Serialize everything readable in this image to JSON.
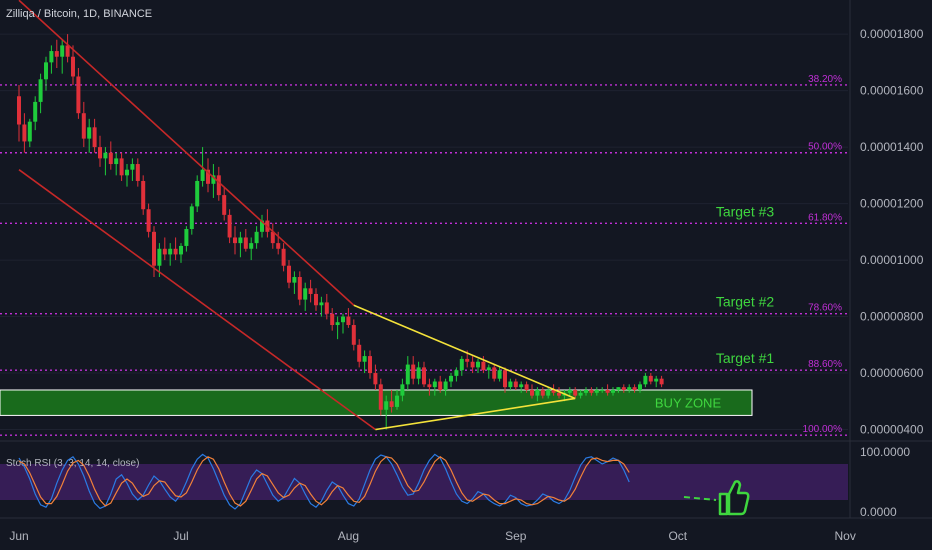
{
  "header": {
    "title": "Zilliqa / Bitcoin, 1D, BINANCE"
  },
  "colors": {
    "background": "#131722",
    "up": "#26a69a",
    "up_fill": "#1fcc3c",
    "down": "#e0303a",
    "channel": "#c62828",
    "triangle": "#f4e23a",
    "fib": "#c02fd6",
    "target_text": "#3fd63f",
    "buy_zone_fill": "#1b7a1b",
    "buy_zone_border": "#ffffff",
    "stoch_k": "#2b7be4",
    "stoch_d": "#f2813a",
    "stoch_band": "#3b1e5c",
    "axis_text": "#b2b5be"
  },
  "chart_data": [
    {
      "type": "candlestick",
      "title": "Zilliqa / Bitcoin, 1D, BINANCE",
      "x_ticks": [
        "Jun",
        "Jul",
        "Aug",
        "Sep",
        "Oct",
        "Nov"
      ],
      "y_ticks": [
        "0.00000400",
        "0.00000600",
        "0.00000800",
        "0.00001000",
        "0.00001200",
        "0.00001400",
        "0.00001600",
        "0.00001800"
      ],
      "ylim": [
        3.7e-06,
        1.85e-05
      ],
      "fib_levels": [
        {
          "label": "38.20%",
          "value": 1.62e-05
        },
        {
          "label": "50.00%",
          "value": 1.38e-05
        },
        {
          "label": "61.80%",
          "value": 1.13e-05
        },
        {
          "label": "78.60%",
          "value": 8.1e-06
        },
        {
          "label": "88.60%",
          "value": 6.1e-06
        },
        {
          "label": "100.00%",
          "value": 3.8e-06
        }
      ],
      "targets": [
        {
          "label": "Target #3",
          "value": 1.13e-05
        },
        {
          "label": "Target #2",
          "value": 8.1e-06
        },
        {
          "label": "Target #1",
          "value": 6.1e-06
        }
      ],
      "buy_zone": {
        "label": "BUY ZONE",
        "low": 4.5e-06,
        "high": 5.4e-06
      },
      "days": 140,
      "month_starts": {
        "Jun": 0,
        "Jul": 30,
        "Aug": 61,
        "Sep": 92,
        "Oct": 122,
        "Nov": 153
      },
      "candles": [
        [
          1.58e-05,
          1.62e-05,
          1.42e-05,
          1.48e-05
        ],
        [
          1.48e-05,
          1.52e-05,
          1.38e-05,
          1.42e-05
        ],
        [
          1.42e-05,
          1.5e-05,
          1.4e-05,
          1.49e-05
        ],
        [
          1.49e-05,
          1.58e-05,
          1.46e-05,
          1.56e-05
        ],
        [
          1.56e-05,
          1.66e-05,
          1.52e-05,
          1.64e-05
        ],
        [
          1.64e-05,
          1.72e-05,
          1.6e-05,
          1.7e-05
        ],
        [
          1.7e-05,
          1.76e-05,
          1.66e-05,
          1.74e-05
        ],
        [
          1.74e-05,
          1.78e-05,
          1.68e-05,
          1.72e-05
        ],
        [
          1.72e-05,
          1.78e-05,
          1.66e-05,
          1.76e-05
        ],
        [
          1.76e-05,
          1.8e-05,
          1.7e-05,
          1.72e-05
        ],
        [
          1.72e-05,
          1.76e-05,
          1.62e-05,
          1.65e-05
        ],
        [
          1.65e-05,
          1.68e-05,
          1.5e-05,
          1.52e-05
        ],
        [
          1.52e-05,
          1.56e-05,
          1.4e-05,
          1.43e-05
        ],
        [
          1.43e-05,
          1.5e-05,
          1.38e-05,
          1.47e-05
        ],
        [
          1.47e-05,
          1.5e-05,
          1.38e-05,
          1.4e-05
        ],
        [
          1.4e-05,
          1.44e-05,
          1.33e-05,
          1.36e-05
        ],
        [
          1.36e-05,
          1.4e-05,
          1.3e-05,
          1.38e-05
        ],
        [
          1.38e-05,
          1.42e-05,
          1.32e-05,
          1.34e-05
        ],
        [
          1.34e-05,
          1.38e-05,
          1.3e-05,
          1.36e-05
        ],
        [
          1.36e-05,
          1.38e-05,
          1.28e-05,
          1.3e-05
        ],
        [
          1.3e-05,
          1.34e-05,
          1.26e-05,
          1.32e-05
        ],
        [
          1.32e-05,
          1.36e-05,
          1.28e-05,
          1.34e-05
        ],
        [
          1.34e-05,
          1.36e-05,
          1.26e-05,
          1.28e-05
        ],
        [
          1.28e-05,
          1.3e-05,
          1.16e-05,
          1.18e-05
        ],
        [
          1.18e-05,
          1.2e-05,
          1.08e-05,
          1.1e-05
        ],
        [
          1.1e-05,
          1.12e-05,
          9.4e-06,
          9.8e-06
        ],
        [
          9.8e-06,
          1.06e-05,
          9.4e-06,
          1.04e-05
        ],
        [
          1.04e-05,
          1.08e-05,
          1e-05,
          1.02e-05
        ],
        [
          1.02e-05,
          1.06e-05,
          9.8e-06,
          1.04e-05
        ],
        [
          1.04e-05,
          1.08e-05,
          1e-05,
          1.02e-05
        ],
        [
          1.02e-05,
          1.06e-05,
          9.9e-06,
          1.05e-05
        ],
        [
          1.05e-05,
          1.12e-05,
          1.03e-05,
          1.11e-05
        ],
        [
          1.11e-05,
          1.2e-05,
          1.09e-05,
          1.19e-05
        ],
        [
          1.19e-05,
          1.3e-05,
          1.17e-05,
          1.28e-05
        ],
        [
          1.28e-05,
          1.4e-05,
          1.26e-05,
          1.32e-05
        ],
        [
          1.32e-05,
          1.36e-05,
          1.24e-05,
          1.27e-05
        ],
        [
          1.27e-05,
          1.34e-05,
          1.22e-05,
          1.3e-05
        ],
        [
          1.3e-05,
          1.33e-05,
          1.21e-05,
          1.23e-05
        ],
        [
          1.23e-05,
          1.26e-05,
          1.14e-05,
          1.16e-05
        ],
        [
          1.16e-05,
          1.18e-05,
          1.06e-05,
          1.08e-05
        ],
        [
          1.08e-05,
          1.12e-05,
          1.02e-05,
          1.06e-05
        ],
        [
          1.06e-05,
          1.1e-05,
          1.01e-05,
          1.08e-05
        ],
        [
          1.08e-05,
          1.11e-05,
          1.03e-05,
          1.04e-05
        ],
        [
          1.04e-05,
          1.08e-05,
          1e-05,
          1.06e-05
        ],
        [
          1.06e-05,
          1.12e-05,
          1.04e-05,
          1.1e-05
        ],
        [
          1.1e-05,
          1.16e-05,
          1.08e-05,
          1.14e-05
        ],
        [
          1.14e-05,
          1.18e-05,
          1.08e-05,
          1.1e-05
        ],
        [
          1.1e-05,
          1.13e-05,
          1.04e-05,
          1.06e-05
        ],
        [
          1.06e-05,
          1.1e-05,
          1.02e-05,
          1.04e-05
        ],
        [
          1.04e-05,
          1.06e-05,
          9.6e-06,
          9.8e-06
        ],
        [
          9.8e-06,
          1e-05,
          9e-06,
          9.2e-06
        ],
        [
          9.2e-06,
          9.6e-06,
          8.8e-06,
          9.4e-06
        ],
        [
          9.4e-06,
          9.6e-06,
          8.4e-06,
          8.6e-06
        ],
        [
          8.6e-06,
          9.2e-06,
          8.2e-06,
          9e-06
        ],
        [
          9e-06,
          9.3e-06,
          8.5e-06,
          8.8e-06
        ],
        [
          8.8e-06,
          9e-06,
          8.2e-06,
          8.4e-06
        ],
        [
          8.4e-06,
          8.7e-06,
          8e-06,
          8.5e-06
        ],
        [
          8.5e-06,
          8.8e-06,
          7.9e-06,
          8.1e-06
        ],
        [
          8.1e-06,
          8.3e-06,
          7.5e-06,
          7.7e-06
        ],
        [
          7.7e-06,
          8e-06,
          7.2e-06,
          7.8e-06
        ],
        [
          7.8e-06,
          8.1e-06,
          7.4e-06,
          8e-06
        ],
        [
          8e-06,
          8.3e-06,
          7.6e-06,
          7.7e-06
        ],
        [
          7.7e-06,
          7.9e-06,
          6.8e-06,
          7e-06
        ],
        [
          7e-06,
          7.2e-06,
          6.2e-06,
          6.4e-06
        ],
        [
          6.4e-06,
          6.8e-06,
          6e-06,
          6.6e-06
        ],
        [
          6.6e-06,
          6.8e-06,
          5.8e-06,
          6e-06
        ],
        [
          6e-06,
          6.3e-06,
          5.4e-06,
          5.6e-06
        ],
        [
          5.6e-06,
          5.8e-06,
          4.5e-06,
          4.7e-06
        ],
        [
          4.7e-06,
          5.2e-06,
          4e-06,
          5e-06
        ],
        [
          5e-06,
          5.4e-06,
          4.6e-06,
          4.8e-06
        ],
        [
          4.8e-06,
          5.4e-06,
          4.7e-06,
          5.2e-06
        ],
        [
          5.2e-06,
          5.8e-06,
          5e-06,
          5.6e-06
        ],
        [
          5.6e-06,
          6.6e-06,
          5.4e-06,
          6.3e-06
        ],
        [
          6.3e-06,
          6.6e-06,
          5.6e-06,
          5.8e-06
        ],
        [
          5.8e-06,
          6.4e-06,
          5.6e-06,
          6.2e-06
        ],
        [
          6.2e-06,
          6.4e-06,
          5.5e-06,
          5.6e-06
        ],
        [
          5.6e-06,
          5.8e-06,
          5.2e-06,
          5.5e-06
        ],
        [
          5.5e-06,
          5.8e-06,
          5.2e-06,
          5.7e-06
        ],
        [
          5.7e-06,
          5.9e-06,
          5.3e-06,
          5.4e-06
        ],
        [
          5.4e-06,
          5.8e-06,
          5.2e-06,
          5.7e-06
        ],
        [
          5.7e-06,
          6e-06,
          5.5e-06,
          5.9e-06
        ],
        [
          5.9e-06,
          6.2e-06,
          5.7e-06,
          6.1e-06
        ],
        [
          6.1e-06,
          6.6e-06,
          5.9e-06,
          6.5e-06
        ],
        [
          6.5e-06,
          6.8e-06,
          6.2e-06,
          6.4e-06
        ],
        [
          6.4e-06,
          6.6e-06,
          6e-06,
          6.2e-06
        ],
        [
          6.2e-06,
          6.5e-06,
          6e-06,
          6.4e-06
        ],
        [
          6.4e-06,
          6.6e-06,
          6e-06,
          6.1e-06
        ],
        [
          6.1e-06,
          6.3e-06,
          5.8e-06,
          6.2e-06
        ],
        [
          6.2e-06,
          6.3e-06,
          5.7e-06,
          5.8e-06
        ],
        [
          5.8e-06,
          6.2e-06,
          5.7e-06,
          6.1e-06
        ],
        [
          6.1e-06,
          6.2e-06,
          5.3e-06,
          5.5e-06
        ],
        [
          5.5e-06,
          5.8e-06,
          5.4e-06,
          5.7e-06
        ],
        [
          5.7e-06,
          5.8e-06,
          5.4e-06,
          5.5e-06
        ],
        [
          5.5e-06,
          5.7e-06,
          5.3e-06,
          5.6e-06
        ],
        [
          5.6e-06,
          5.7e-06,
          5.3e-06,
          5.4e-06
        ],
        [
          5.4e-06,
          5.6e-06,
          5.1e-06,
          5.2e-06
        ],
        [
          5.2e-06,
          5.5e-06,
          5e-06,
          5.4e-06
        ],
        [
          5.4e-06,
          5.5e-06,
          5.1e-06,
          5.2e-06
        ],
        [
          5.2e-06,
          5.5e-06,
          5.1e-06,
          5.4e-06
        ],
        [
          5.4e-06,
          5.6e-06,
          5.2e-06,
          5.3e-06
        ],
        [
          5.3e-06,
          5.5e-06,
          5.1e-06,
          5.2e-06
        ],
        [
          5.2e-06,
          5.4e-06,
          5e-06,
          5.3e-06
        ],
        [
          5.3e-06,
          5.5e-06,
          5.2e-06,
          5.4e-06
        ],
        [
          5.4e-06,
          5.5e-06,
          5.1e-06,
          5.2e-06
        ],
        [
          5.2e-06,
          5.4e-06,
          5.1e-06,
          5.3e-06
        ],
        [
          5.3e-06,
          5.5e-06,
          5.2e-06,
          5.4e-06
        ],
        [
          5.4e-06,
          5.5e-06,
          5.2e-06,
          5.3e-06
        ],
        [
          5.3e-06,
          5.5e-06,
          5.2e-06,
          5.4e-06
        ],
        [
          5.4e-06,
          5.5e-06,
          5.3e-06,
          5.4e-06
        ],
        [
          5.4e-06,
          5.6e-06,
          5.2e-06,
          5.3e-06
        ],
        [
          5.3e-06,
          5.5e-06,
          5.2e-06,
          5.4e-06
        ],
        [
          5.4e-06,
          5.5e-06,
          5.3e-06,
          5.5e-06
        ],
        [
          5.5e-06,
          5.6e-06,
          5.3e-06,
          5.4e-06
        ],
        [
          5.4e-06,
          5.6e-06,
          5.3e-06,
          5.5e-06
        ],
        [
          5.5e-06,
          5.6e-06,
          5.3e-06,
          5.4e-06
        ],
        [
          5.4e-06,
          5.7e-06,
          5.3e-06,
          5.6e-06
        ],
        [
          5.6e-06,
          6e-06,
          5.5e-06,
          5.9e-06
        ],
        [
          5.9e-06,
          6e-06,
          5.6e-06,
          5.7e-06
        ],
        [
          5.7e-06,
          5.9e-06,
          5.5e-06,
          5.8e-06
        ],
        [
          5.8e-06,
          5.9e-06,
          5.5e-06,
          5.6e-06
        ]
      ],
      "trendlines": {
        "channel_upper": [
          [
            0,
            1.92e-05
          ],
          [
            62,
            8.4e-06
          ]
        ],
        "channel_lower": [
          [
            0,
            1.32e-05
          ],
          [
            66,
            4e-06
          ]
        ],
        "triangle_upper": [
          [
            62,
            8.4e-06
          ],
          [
            103,
            5.1e-06
          ]
        ],
        "triangle_lower": [
          [
            66,
            4e-06
          ],
          [
            103,
            5.1e-06
          ]
        ]
      }
    },
    {
      "type": "line",
      "title": "Stoch RSI (3, 3, 14, 14, close)",
      "y_ticks": [
        "100.0000",
        "0.0000"
      ],
      "ylim": [
        0,
        100
      ],
      "band": [
        20,
        80
      ],
      "series": [
        {
          "name": "K",
          "values": [
            90,
            75,
            55,
            30,
            12,
            8,
            22,
            48,
            70,
            86,
            92,
            80,
            60,
            35,
            15,
            6,
            10,
            30,
            55,
            62,
            48,
            30,
            20,
            28,
            45,
            60,
            52,
            38,
            25,
            18,
            30,
            50,
            72,
            88,
            96,
            90,
            72,
            50,
            28,
            12,
            5,
            14,
            36,
            58,
            70,
            64,
            46,
            28,
            18,
            24,
            40,
            56,
            48,
            30,
            14,
            8,
            18,
            36,
            50,
            44,
            28,
            14,
            10,
            22,
            46,
            70,
            88,
            95,
            92,
            80,
            62,
            42,
            28,
            30,
            48,
            70,
            86,
            96,
            90,
            72,
            50,
            30,
            18,
            14,
            22,
            34,
            30,
            20,
            14,
            10,
            16,
            28,
            24,
            14,
            10,
            12,
            20,
            30,
            26,
            18,
            14,
            20,
            36,
            58,
            78,
            90,
            92,
            86,
            80,
            84,
            90,
            86,
            70,
            50
          ]
        },
        {
          "name": "D",
          "values": [
            85,
            80,
            65,
            45,
            25,
            14,
            14,
            26,
            46,
            68,
            82,
            86,
            78,
            60,
            38,
            20,
            10,
            15,
            32,
            48,
            55,
            48,
            34,
            26,
            30,
            44,
            52,
            50,
            38,
            27,
            25,
            32,
            50,
            70,
            85,
            92,
            88,
            72,
            50,
            30,
            15,
            10,
            18,
            36,
            55,
            64,
            60,
            46,
            32,
            24,
            28,
            40,
            48,
            44,
            30,
            18,
            12,
            20,
            34,
            44,
            40,
            28,
            18,
            16,
            26,
            46,
            68,
            84,
            92,
            90,
            80,
            62,
            44,
            34,
            36,
            50,
            68,
            84,
            92,
            86,
            70,
            50,
            32,
            20,
            18,
            24,
            30,
            28,
            20,
            14,
            14,
            18,
            22,
            20,
            14,
            12,
            14,
            20,
            26,
            24,
            20,
            18,
            24,
            38,
            58,
            76,
            88,
            90,
            86,
            84,
            86,
            86,
            80,
            66
          ]
        }
      ]
    }
  ],
  "annotations": {
    "stoch_label": "Stoch RSI (3, 3, 14, 14, close)"
  }
}
